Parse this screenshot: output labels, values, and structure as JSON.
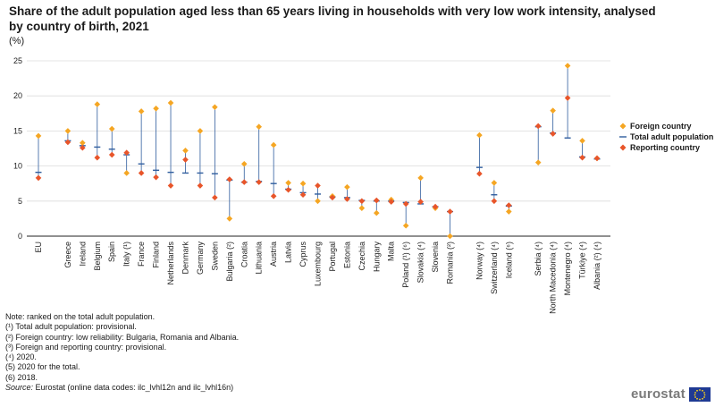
{
  "chart_data": {
    "type": "scatter",
    "title": "Share of the adult population aged less than 65 years living in households with very low work intensity, analysed by country of birth, 2021",
    "unit_label": "(%)",
    "ylim": [
      0,
      25
    ],
    "yticks": [
      0,
      5,
      10,
      15,
      20,
      25
    ],
    "grid": true,
    "legend_position": "right",
    "series_names": {
      "foreign": "Foreign country",
      "total": "Total adult population",
      "reporting": "Reporting country"
    },
    "series_colors": {
      "foreign": "#f5a623",
      "total": "#2f5d9e",
      "reporting": "#e8552a"
    },
    "groups": [
      [
        {
          "name": "EU",
          "foreign": 14.3,
          "total": 9.1,
          "reporting": 8.3
        }
      ],
      [
        {
          "name": "Greece",
          "foreign": 15.0,
          "total": 13.6,
          "reporting": 13.4
        },
        {
          "name": "Ireland",
          "foreign": 13.3,
          "total": 12.9,
          "reporting": 12.6
        },
        {
          "name": "Belgium",
          "foreign": 18.8,
          "total": 12.7,
          "reporting": 11.2
        },
        {
          "name": "Spain",
          "foreign": 15.3,
          "total": 12.4,
          "reporting": 11.6
        },
        {
          "name": "Italy (¹)",
          "foreign": 9.0,
          "total": 11.6,
          "reporting": 11.9
        },
        {
          "name": "France",
          "foreign": 17.8,
          "total": 10.3,
          "reporting": 9.0
        },
        {
          "name": "Finland",
          "foreign": 18.2,
          "total": 9.4,
          "reporting": 8.4
        },
        {
          "name": "Netherlands",
          "foreign": 19.0,
          "total": 9.1,
          "reporting": 7.2
        },
        {
          "name": "Denmark",
          "foreign": 12.2,
          "total": 9.0,
          "reporting": 10.9
        },
        {
          "name": "Germany",
          "foreign": 15.0,
          "total": 9.0,
          "reporting": 7.2
        },
        {
          "name": "Sweden",
          "foreign": 18.4,
          "total": 8.9,
          "reporting": 5.5
        },
        {
          "name": "Bulgaria (²)",
          "foreign": 2.5,
          "total": 8.0,
          "reporting": 8.1
        },
        {
          "name": "Croatia",
          "foreign": 10.3,
          "total": 7.7,
          "reporting": 7.7
        },
        {
          "name": "Lithuania",
          "foreign": 15.6,
          "total": 7.8,
          "reporting": 7.7
        },
        {
          "name": "Austria",
          "foreign": 13.0,
          "total": 7.5,
          "reporting": 5.7
        },
        {
          "name": "Latvia",
          "foreign": 7.6,
          "total": 6.7,
          "reporting": 6.6
        },
        {
          "name": "Cyprus",
          "foreign": 7.5,
          "total": 6.2,
          "reporting": 5.9
        },
        {
          "name": "Luxembourg",
          "foreign": 5.0,
          "total": 6.0,
          "reporting": 7.2
        },
        {
          "name": "Portugal",
          "foreign": 5.7,
          "total": 5.6,
          "reporting": 5.5
        },
        {
          "name": "Estonia",
          "foreign": 7.0,
          "total": 5.5,
          "reporting": 5.3
        },
        {
          "name": "Czechia",
          "foreign": 4.0,
          "total": 5.1,
          "reporting": 5.0
        },
        {
          "name": "Hungary",
          "foreign": 3.3,
          "total": 5.0,
          "reporting": 5.1
        },
        {
          "name": "Malta",
          "foreign": 5.2,
          "total": 5.0,
          "reporting": 4.9
        },
        {
          "name": "Poland (¹) (⁶)",
          "foreign": 1.5,
          "total": 4.8,
          "reporting": 4.6
        },
        {
          "name": "Slovakia (⁴)",
          "foreign": 8.3,
          "total": 4.6,
          "reporting": 4.9
        },
        {
          "name": "Slovenia",
          "foreign": 4.0,
          "total": 4.2,
          "reporting": 4.2
        },
        {
          "name": "Romania (²)",
          "foreign": 0.0,
          "total": 3.5,
          "reporting": 3.5
        }
      ],
      [
        {
          "name": "Norway (⁴)",
          "foreign": 14.4,
          "total": 9.8,
          "reporting": 8.9
        },
        {
          "name": "Switzerland (⁴)",
          "foreign": 7.6,
          "total": 5.9,
          "reporting": 5.0
        },
        {
          "name": "Iceland (⁶)",
          "foreign": 3.5,
          "total": 4.3,
          "reporting": 4.4
        }
      ],
      [
        {
          "name": "Serbia (⁴)",
          "foreign": 10.5,
          "total": 15.6,
          "reporting": 15.7
        },
        {
          "name": "North Macedonia (⁴)",
          "foreign": 17.9,
          "total": 14.7,
          "reporting": 14.6
        },
        {
          "name": "Montenegro (⁴)",
          "foreign": 24.3,
          "total": 14.0,
          "reporting": 19.7
        },
        {
          "name": "Türkiye (⁴)",
          "foreign": 13.6,
          "total": 11.3,
          "reporting": 11.2
        },
        {
          "name": "Albania (²) (⁴)",
          "foreign": 11.1,
          "total": 11.0,
          "reporting": 11.1
        }
      ]
    ]
  },
  "notes": {
    "lines": [
      "Note: ranked on the total adult population.",
      "(¹) Total adult population: provisional.",
      "(²) Foreign country: low reliability: Bulgaria, Romania and Albania.",
      "(³) Foreign and reporting country: provisional.",
      "(⁴) 2020.",
      "(5) 2020 for the total.",
      "(6) 2018."
    ],
    "source_label": "Source:",
    "source_text": " Eurostat (online data codes: ilc_lvhl12n and ilc_lvhl16n)"
  },
  "logo": {
    "text": "eurostat"
  }
}
